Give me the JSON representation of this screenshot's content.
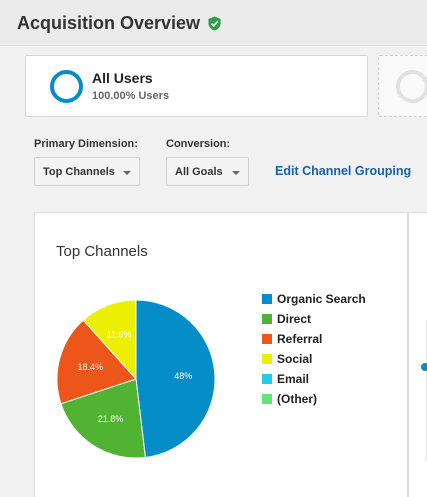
{
  "header": {
    "title": "Acquisition Overview",
    "verified_icon": "shield-check-icon",
    "verified_color": "#2e9e4a"
  },
  "segment": {
    "name": "All Users",
    "percentage": "100.00% Users",
    "ring_color": "#058dc7"
  },
  "controls": {
    "primary_dimension_label": "Primary Dimension:",
    "primary_dimension_value": "Top Channels",
    "conversion_label": "Conversion:",
    "conversion_value": "All Goals",
    "edit_link": "Edit Channel Grouping"
  },
  "chart_data": {
    "type": "pie",
    "title": "Top Channels",
    "categories": [
      "Organic Search",
      "Direct",
      "Referral",
      "Social",
      "Email",
      "(Other)"
    ],
    "values": [
      48,
      21.8,
      18.4,
      11.6,
      0,
      0
    ],
    "value_labels": [
      "48%",
      "21.8%",
      "18.4%",
      "11.6%",
      "",
      ""
    ],
    "colors": [
      "#058dc7",
      "#50b432",
      "#ed561b",
      "#edef00",
      "#24cbe5",
      "#64e572"
    ],
    "legend_position": "right"
  }
}
